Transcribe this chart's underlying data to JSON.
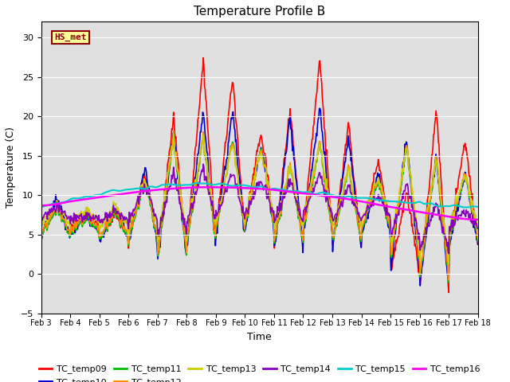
{
  "title": "Temperature Profile B",
  "xlabel": "Time",
  "ylabel": "Temperature (C)",
  "ylim": [
    -5,
    32
  ],
  "xlim": [
    0,
    15
  ],
  "annotation_text": "HS_met",
  "annotation_color": "#8B0000",
  "annotation_bg": "#FFFF99",
  "annotation_edge": "#8B0000",
  "bg_color": "#E0E0E0",
  "x_tick_labels": [
    "Feb 3",
    "Feb 4",
    "Feb 5",
    "Feb 6",
    "Feb 7",
    "Feb 8",
    "Feb 9",
    "Feb 10",
    "Feb 11",
    "Feb 12",
    "Feb 13",
    "Feb 14",
    "Feb 15",
    "Feb 16",
    "Feb 17",
    "Feb 18"
  ],
  "series_colors": {
    "TC_temp09": "#FF0000",
    "TC_temp10": "#0000CD",
    "TC_temp11": "#00BB00",
    "TC_temp12": "#FF8C00",
    "TC_temp13": "#CCCC00",
    "TC_temp14": "#8800BB",
    "TC_temp15": "#00CCCC",
    "TC_temp16": "#FF00FF"
  },
  "series_lw": {
    "TC_temp09": 1.2,
    "TC_temp10": 1.2,
    "TC_temp11": 1.2,
    "TC_temp12": 1.2,
    "TC_temp13": 1.2,
    "TC_temp14": 1.2,
    "TC_temp15": 1.5,
    "TC_temp16": 1.8
  }
}
